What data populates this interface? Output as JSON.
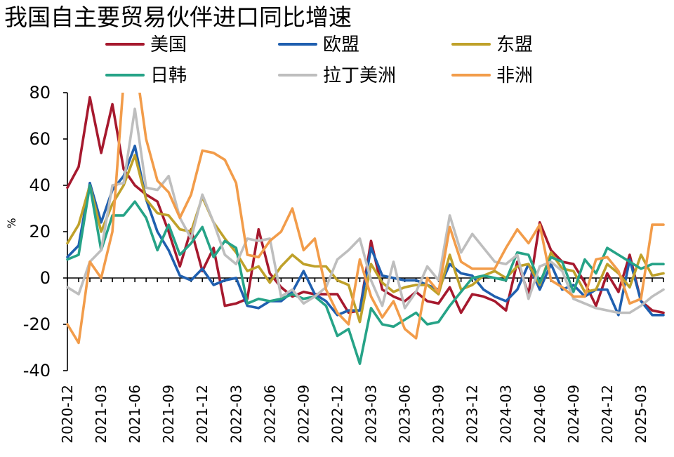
{
  "chart_data": {
    "type": "line",
    "title": "我国自主要贸易伙伴进口同比增速",
    "ylabel": "%",
    "xlabel": "",
    "ylim": [
      -40,
      80
    ],
    "yticks": [
      80,
      60,
      40,
      20,
      0,
      -20,
      -40
    ],
    "x_tick_labels": [
      "2020-12",
      "2021-03",
      "2021-06",
      "2021-09",
      "2021-12",
      "2022-03",
      "2022-06",
      "2022-09",
      "2022-12",
      "2023-03",
      "2023-06",
      "2023-09",
      "2023-12",
      "2024-03",
      "2024-06",
      "2024-09",
      "2024-12",
      "2025-03"
    ],
    "x": [
      "2020-12",
      "2021-01",
      "2021-02",
      "2021-03",
      "2021-04",
      "2021-05",
      "2021-06",
      "2021-07",
      "2021-08",
      "2021-09",
      "2021-10",
      "2021-11",
      "2021-12",
      "2022-01",
      "2022-02",
      "2022-03",
      "2022-04",
      "2022-05",
      "2022-06",
      "2022-07",
      "2022-08",
      "2022-09",
      "2022-10",
      "2022-11",
      "2022-12",
      "2023-01",
      "2023-02",
      "2023-03",
      "2023-04",
      "2023-05",
      "2023-06",
      "2023-07",
      "2023-08",
      "2023-09",
      "2023-10",
      "2023-11",
      "2023-12",
      "2024-01",
      "2024-02",
      "2024-03",
      "2024-04",
      "2024-05",
      "2024-06",
      "2024-07",
      "2024-08",
      "2024-09",
      "2024-10",
      "2024-11",
      "2024-12",
      "2025-01",
      "2025-02",
      "2025-03",
      "2025-04",
      "2025-05"
    ],
    "legend_position": "top",
    "grid": false,
    "series": [
      {
        "name": "美国",
        "color": "#A6192E",
        "values": [
          39,
          48,
          78,
          54,
          75,
          47,
          40,
          36,
          33,
          20,
          5,
          21,
          3,
          13,
          -12,
          -11,
          -9,
          21,
          2,
          -4,
          -8,
          -6,
          -7,
          -7,
          -7,
          -15,
          -14,
          16,
          -5,
          -8,
          -10,
          -6,
          -10,
          -11,
          -4,
          -15,
          -7,
          -8,
          -10,
          -14,
          7,
          -7,
          24,
          12,
          7,
          6,
          -2,
          -12,
          2,
          -6,
          10,
          -10,
          -14,
          -15
        ]
      },
      {
        "name": "欧盟",
        "color": "#1F5FAF",
        "values": [
          9,
          14,
          41,
          24,
          38,
          44,
          57,
          34,
          20,
          12,
          1,
          -1,
          4,
          -3,
          -1,
          0,
          -12,
          -13,
          -10,
          -10,
          -6,
          3,
          -7,
          -10,
          -16,
          -14,
          -14,
          13,
          1,
          0,
          -1,
          -1,
          -3,
          -5,
          6,
          2,
          1,
          -5,
          -8,
          -10,
          -5,
          6,
          -5,
          6,
          -5,
          -3,
          -8,
          -5,
          -5,
          -16,
          8,
          -10,
          -16,
          -16
        ]
      },
      {
        "name": "东盟",
        "color": "#BFA12A",
        "values": [
          15,
          23,
          40,
          20,
          32,
          40,
          53,
          34,
          28,
          27,
          21,
          20,
          35,
          24,
          17,
          11,
          3,
          5,
          -2,
          5,
          10,
          6,
          5,
          5,
          -1,
          -3,
          -19,
          6,
          -2,
          -6,
          -4,
          -3,
          -3,
          -7,
          10,
          -5,
          -3,
          1,
          3,
          0,
          5,
          6,
          -3,
          11,
          4,
          3,
          -6,
          -5,
          6,
          2,
          -4,
          10,
          1,
          2
        ]
      },
      {
        "name": "日韩",
        "color": "#26A387",
        "values": [
          8,
          10,
          40,
          12,
          27,
          27,
          33,
          26,
          12,
          23,
          10,
          15,
          22,
          9,
          16,
          13,
          -11,
          -9,
          -10,
          -9,
          -7,
          -9,
          -8,
          -12,
          -25,
          -22,
          -37,
          -13,
          -20,
          -21,
          -18,
          -15,
          -20,
          -19,
          -12,
          -6,
          0,
          1,
          0,
          -1,
          11,
          10,
          -2,
          9,
          7,
          -6,
          8,
          2,
          13,
          10,
          7,
          4,
          6,
          6
        ]
      },
      {
        "name": "拉丁美洲",
        "color": "#BEBEBE",
        "values": [
          -4,
          -7,
          7,
          12,
          40,
          41,
          73,
          39,
          38,
          44,
          26,
          17,
          36,
          24,
          10,
          6,
          17,
          16,
          17,
          -8,
          -5,
          -11,
          -8,
          -4,
          8,
          12,
          17,
          -1,
          -12,
          7,
          -13,
          -6,
          5,
          -1,
          27,
          11,
          19,
          13,
          7,
          6,
          10,
          -9,
          5,
          7,
          3,
          -9,
          -11,
          -13,
          -14,
          -15,
          -15,
          -12,
          -8,
          -5
        ]
      },
      {
        "name": "非洲",
        "color": "#F29C4A",
        "values": [
          -20,
          -28,
          7,
          0,
          20,
          85,
          95,
          60,
          42,
          37,
          26,
          36,
          55,
          54,
          51,
          41,
          10,
          9,
          16,
          20,
          30,
          12,
          17,
          -5,
          -15,
          -20,
          8,
          -8,
          -17,
          -10,
          -22,
          -26,
          0,
          -6,
          22,
          7,
          4,
          4,
          4,
          13,
          21,
          15,
          23,
          -1,
          -4,
          -8,
          -8,
          8,
          9,
          3,
          -11,
          -9,
          23,
          23
        ]
      }
    ]
  }
}
